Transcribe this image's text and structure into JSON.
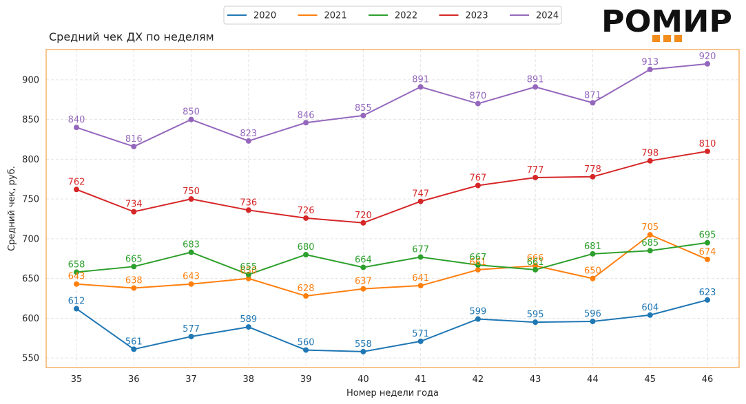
{
  "brand": {
    "logo_text": "РОМИР",
    "accent_color": "#f28c1b"
  },
  "chart_data": {
    "type": "line",
    "title": "Средний чек ДХ по неделям",
    "xlabel": "Номер недели года",
    "ylabel": "Средний чек, руб.",
    "categories": [
      "35",
      "36",
      "37",
      "38",
      "39",
      "40",
      "41",
      "42",
      "43",
      "44",
      "45",
      "46"
    ],
    "ylim": [
      538,
      938
    ],
    "yticks": [
      550,
      600,
      650,
      700,
      750,
      800,
      850,
      900
    ],
    "grid": true,
    "legend": "top-center",
    "frame_color": "#f28c1b",
    "series": [
      {
        "name": "2020",
        "color": "#1f77b4",
        "values": [
          612,
          561,
          577,
          589,
          560,
          558,
          571,
          599,
          595,
          596,
          604,
          623
        ]
      },
      {
        "name": "2021",
        "color": "#ff7f0e",
        "values": [
          643,
          638,
          643,
          650,
          628,
          637,
          641,
          661,
          666,
          650,
          705,
          674
        ]
      },
      {
        "name": "2022",
        "color": "#2ca02c",
        "values": [
          658,
          665,
          683,
          655,
          680,
          664,
          677,
          667,
          661,
          681,
          685,
          695
        ]
      },
      {
        "name": "2023",
        "color": "#d62728",
        "values": [
          762,
          734,
          750,
          736,
          726,
          720,
          747,
          767,
          777,
          778,
          798,
          810
        ]
      },
      {
        "name": "2024",
        "color": "#9467bd",
        "values": [
          840,
          816,
          850,
          823,
          846,
          855,
          891,
          870,
          891,
          871,
          913,
          920
        ]
      }
    ]
  }
}
